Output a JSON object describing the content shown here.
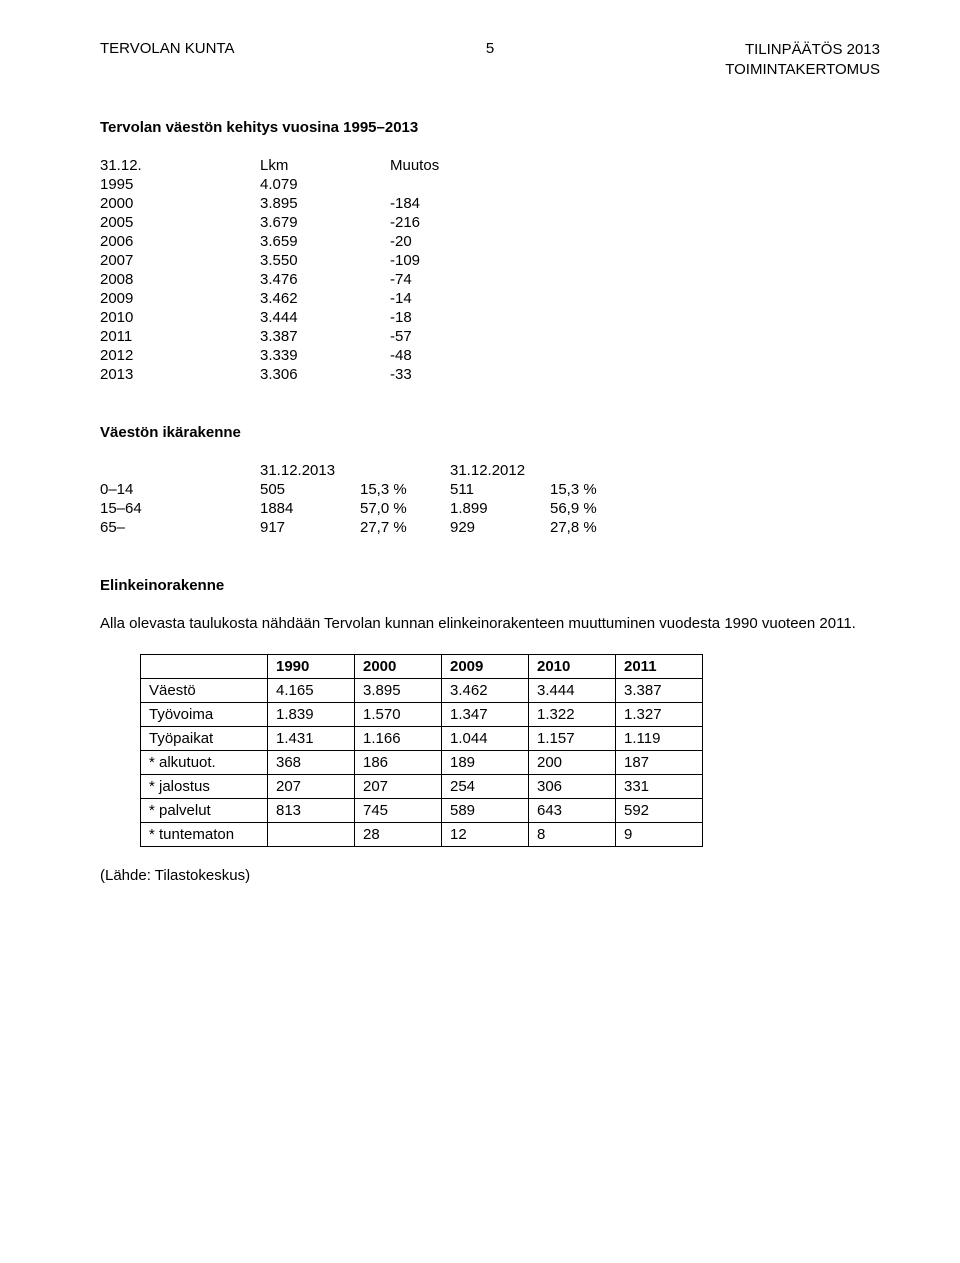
{
  "header": {
    "left": "TERVOLAN KUNTA",
    "page_number": "5",
    "right_top": "TILINPÄÄTÖS 2013",
    "right_bottom": "TOIMINTAKERTOMUS"
  },
  "section1": {
    "title": "Tervolan väestön kehitys vuosina 1995–2013",
    "columns": [
      "31.12.",
      "Lkm",
      "Muutos"
    ],
    "rows": [
      [
        "1995",
        "4.079",
        ""
      ],
      [
        "2000",
        "3.895",
        "-184"
      ],
      [
        "2005",
        "3.679",
        "-216"
      ],
      [
        "2006",
        "3.659",
        "-20"
      ],
      [
        "2007",
        "3.550",
        "-109"
      ],
      [
        "2008",
        "3.476",
        "-74"
      ],
      [
        "2009",
        "3.462",
        "-14"
      ],
      [
        "2010",
        "3.444",
        "-18"
      ],
      [
        "2011",
        "3.387",
        "-57"
      ],
      [
        "2012",
        "3.339",
        "-48"
      ],
      [
        "2013",
        "3.306",
        "-33"
      ]
    ]
  },
  "section2": {
    "title": "Väestön ikärakenne",
    "head": [
      "",
      "31.12.2013",
      "",
      "31.12.2012",
      ""
    ],
    "rows": [
      [
        "0–14",
        "505",
        "15,3 %",
        "511",
        "15,3 %"
      ],
      [
        "15–64",
        "1884",
        "57,0 %",
        "1.899",
        "56,9 %"
      ],
      [
        "65–",
        "917",
        "27,7 %",
        "929",
        "27,8 %"
      ]
    ]
  },
  "section3": {
    "title": "Elinkeinorakenne",
    "intro": "Alla olevasta taulukosta nähdään Tervolan kunnan elinkeinorakenteen muuttuminen vuodesta 1990 vuoteen 2011.",
    "columns": [
      "",
      "1990",
      "2000",
      "2009",
      "2010",
      "2011"
    ],
    "rows": [
      [
        "Väestö",
        "4.165",
        "3.895",
        "3.462",
        "3.444",
        "3.387"
      ],
      [
        "Työvoima",
        "1.839",
        "1.570",
        "1.347",
        "1.322",
        "1.327"
      ],
      [
        "Työpaikat",
        "1.431",
        "1.166",
        "1.044",
        "1.157",
        "1.119"
      ],
      [
        "* alkutuot.",
        "368",
        "186",
        "189",
        "200",
        "187"
      ],
      [
        "* jalostus",
        "207",
        "207",
        "254",
        "306",
        "331"
      ],
      [
        "* palvelut",
        "813",
        "745",
        "589",
        "643",
        "592"
      ],
      [
        "* tuntematon",
        "",
        "28",
        "12",
        "8",
        "9"
      ]
    ]
  },
  "source": "(Lähde: Tilastokeskus)"
}
